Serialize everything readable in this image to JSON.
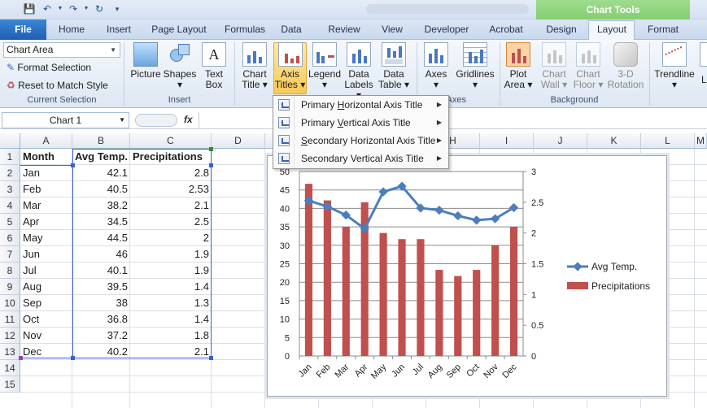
{
  "quick_access": [
    "save-icon",
    "undo-icon",
    "redo-icon",
    "repeat-icon",
    "customize-icon"
  ],
  "context_tab": {
    "label": "Chart Tools"
  },
  "tabs": [
    {
      "label": "File",
      "x": 0
    },
    {
      "label": "Home"
    },
    {
      "label": "Insert"
    },
    {
      "label": "Page Layout"
    },
    {
      "label": "Formulas"
    },
    {
      "label": "Data"
    },
    {
      "label": "Review"
    },
    {
      "label": "View"
    },
    {
      "label": "Developer"
    },
    {
      "label": "Acrobat"
    },
    {
      "label": "Design"
    },
    {
      "label": "Layout"
    },
    {
      "label": "Format"
    }
  ],
  "ribbon": {
    "current_selection": {
      "dropdown_value": "Chart Area",
      "format_selection": "Format Selection",
      "reset_style": "Reset to Match Style",
      "group_label": "Current Selection"
    },
    "insert_group": {
      "picture": "Picture",
      "shapes": "Shapes",
      "text_box_1": "Text",
      "text_box_2": "Box",
      "group_label": "Insert"
    },
    "labels_group": {
      "chart_title_1": "Chart",
      "chart_title_2": "Title",
      "axis_titles_1": "Axis",
      "axis_titles_2": "Titles",
      "legend": "Legend",
      "data_labels_1": "Data",
      "data_labels_2": "Labels",
      "data_table_1": "Data",
      "data_table_2": "Table"
    },
    "axes_group": {
      "axes": "Axes",
      "gridlines": "Gridlines",
      "group_label": "Axes"
    },
    "background_group": {
      "plot_area_1": "Plot",
      "plot_area_2": "Area",
      "chart_wall_1": "Chart",
      "chart_wall_2": "Wall",
      "chart_floor_1": "Chart",
      "chart_floor_2": "Floor",
      "rotation_1": "3-D",
      "rotation_2": "Rotation",
      "group_label": "Background"
    },
    "analysis_group": {
      "trendline": "Trendline"
    }
  },
  "axis_menu": {
    "items": [
      {
        "pre": "Primary ",
        "key": "H",
        "post": "orizontal Axis Title"
      },
      {
        "pre": "Primary ",
        "key": "V",
        "post": "ertical Axis Title"
      },
      {
        "pre": "",
        "key": "S",
        "post": "econdary Horizontal Axis Title"
      },
      {
        "pre": "Secondary Vertical Axis Title",
        "key": "",
        "post": ""
      }
    ]
  },
  "formula_bar": {
    "name_box": "Chart 1",
    "fx": "fx",
    "value": ""
  },
  "sheet": {
    "columns": [
      "A",
      "B",
      "C",
      "D",
      "E",
      "F",
      "G",
      "H",
      "I",
      "J",
      "K",
      "L",
      "M"
    ],
    "rows": [
      "1",
      "2",
      "3",
      "4",
      "5",
      "6",
      "7",
      "8",
      "9",
      "10",
      "11",
      "12",
      "13",
      "14",
      "15"
    ],
    "headers": [
      "Month",
      "Avg Temp.",
      "Precipitations"
    ],
    "data": [
      [
        "Jan",
        "42.1",
        "2.8"
      ],
      [
        "Feb",
        "40.5",
        "2.53"
      ],
      [
        "Mar",
        "38.2",
        "2.1"
      ],
      [
        "Apr",
        "34.5",
        "2.5"
      ],
      [
        "May",
        "44.5",
        "2"
      ],
      [
        "Jun",
        "46",
        "1.9"
      ],
      [
        "Jul",
        "40.1",
        "1.9"
      ],
      [
        "Aug",
        "39.5",
        "1.4"
      ],
      [
        "Sep",
        "38",
        "1.3"
      ],
      [
        "Oct",
        "36.8",
        "1.4"
      ],
      [
        "Nov",
        "37.2",
        "1.8"
      ],
      [
        "Dec",
        "40.2",
        "2.1"
      ]
    ]
  },
  "chart_data": {
    "type": "bar",
    "categories": [
      "Jan",
      "Feb",
      "Mar",
      "Apr",
      "May",
      "Jun",
      "Jul",
      "Aug",
      "Sep",
      "Oct",
      "Nov",
      "Dec"
    ],
    "series": [
      {
        "name": "Avg Temp.",
        "type": "line",
        "axis": "primary",
        "color": "#4a7ebf",
        "values": [
          42.1,
          40.5,
          38.2,
          34.5,
          44.5,
          46,
          40.1,
          39.5,
          38,
          36.8,
          37.2,
          40.2
        ]
      },
      {
        "name": "Precipitations",
        "type": "bar",
        "axis": "secondary",
        "color": "#c0504d",
        "values": [
          2.8,
          2.53,
          2.1,
          2.5,
          2,
          1.9,
          1.9,
          1.4,
          1.3,
          1.4,
          1.8,
          2.1
        ]
      }
    ],
    "y_primary": {
      "min": 0,
      "max": 50,
      "step": 5
    },
    "y_secondary": {
      "min": 0,
      "max": 3,
      "step": 0.5
    },
    "grid": true,
    "legend": "right"
  }
}
